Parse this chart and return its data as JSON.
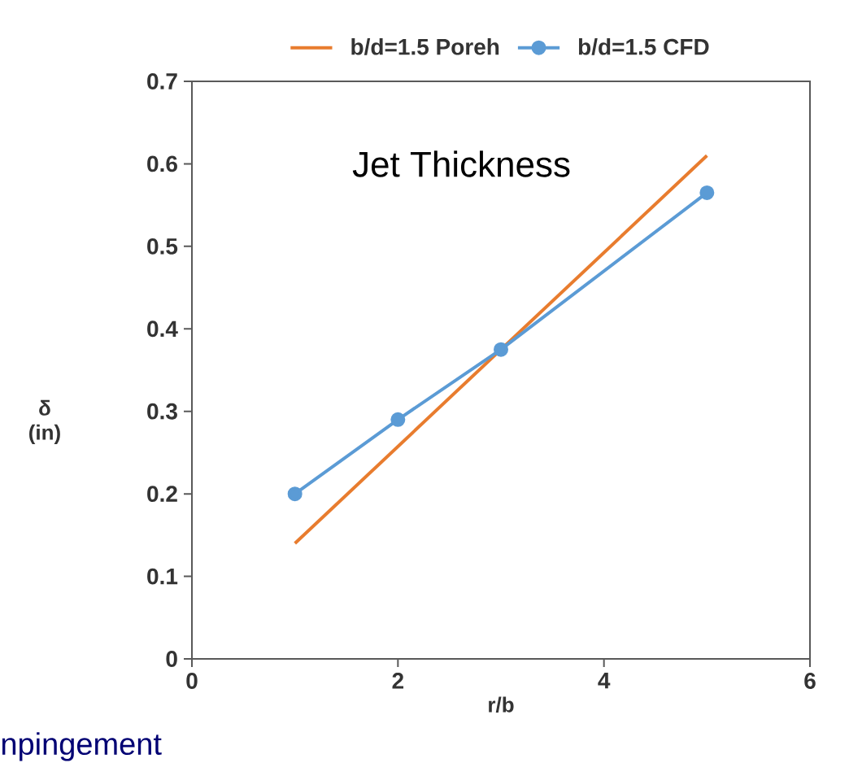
{
  "chart_data": {
    "type": "line",
    "xlabel": "r/b",
    "ylabel": "δ (in)",
    "xlim": [
      0,
      6
    ],
    "ylim": [
      0,
      0.7
    ],
    "xticks": [
      0,
      2,
      4,
      6
    ],
    "yticks": [
      0,
      0.1,
      0.2,
      0.3,
      0.4,
      0.5,
      0.6,
      0.7
    ],
    "grid": false,
    "legend": "top",
    "annotations": [
      "Jet Thickness",
      "npingement"
    ],
    "series": [
      {
        "name": "b/d=1.5 Poreh",
        "color": "#e87c2e",
        "x": [
          1,
          5
        ],
        "values": [
          0.14,
          0.61
        ],
        "marker": "none"
      },
      {
        "name": "b/d=1.5 CFD",
        "color": "#5b9bd5",
        "x": [
          1,
          2,
          3,
          5
        ],
        "values": [
          0.2,
          0.29,
          0.375,
          0.565
        ],
        "marker": "circle"
      }
    ]
  }
}
